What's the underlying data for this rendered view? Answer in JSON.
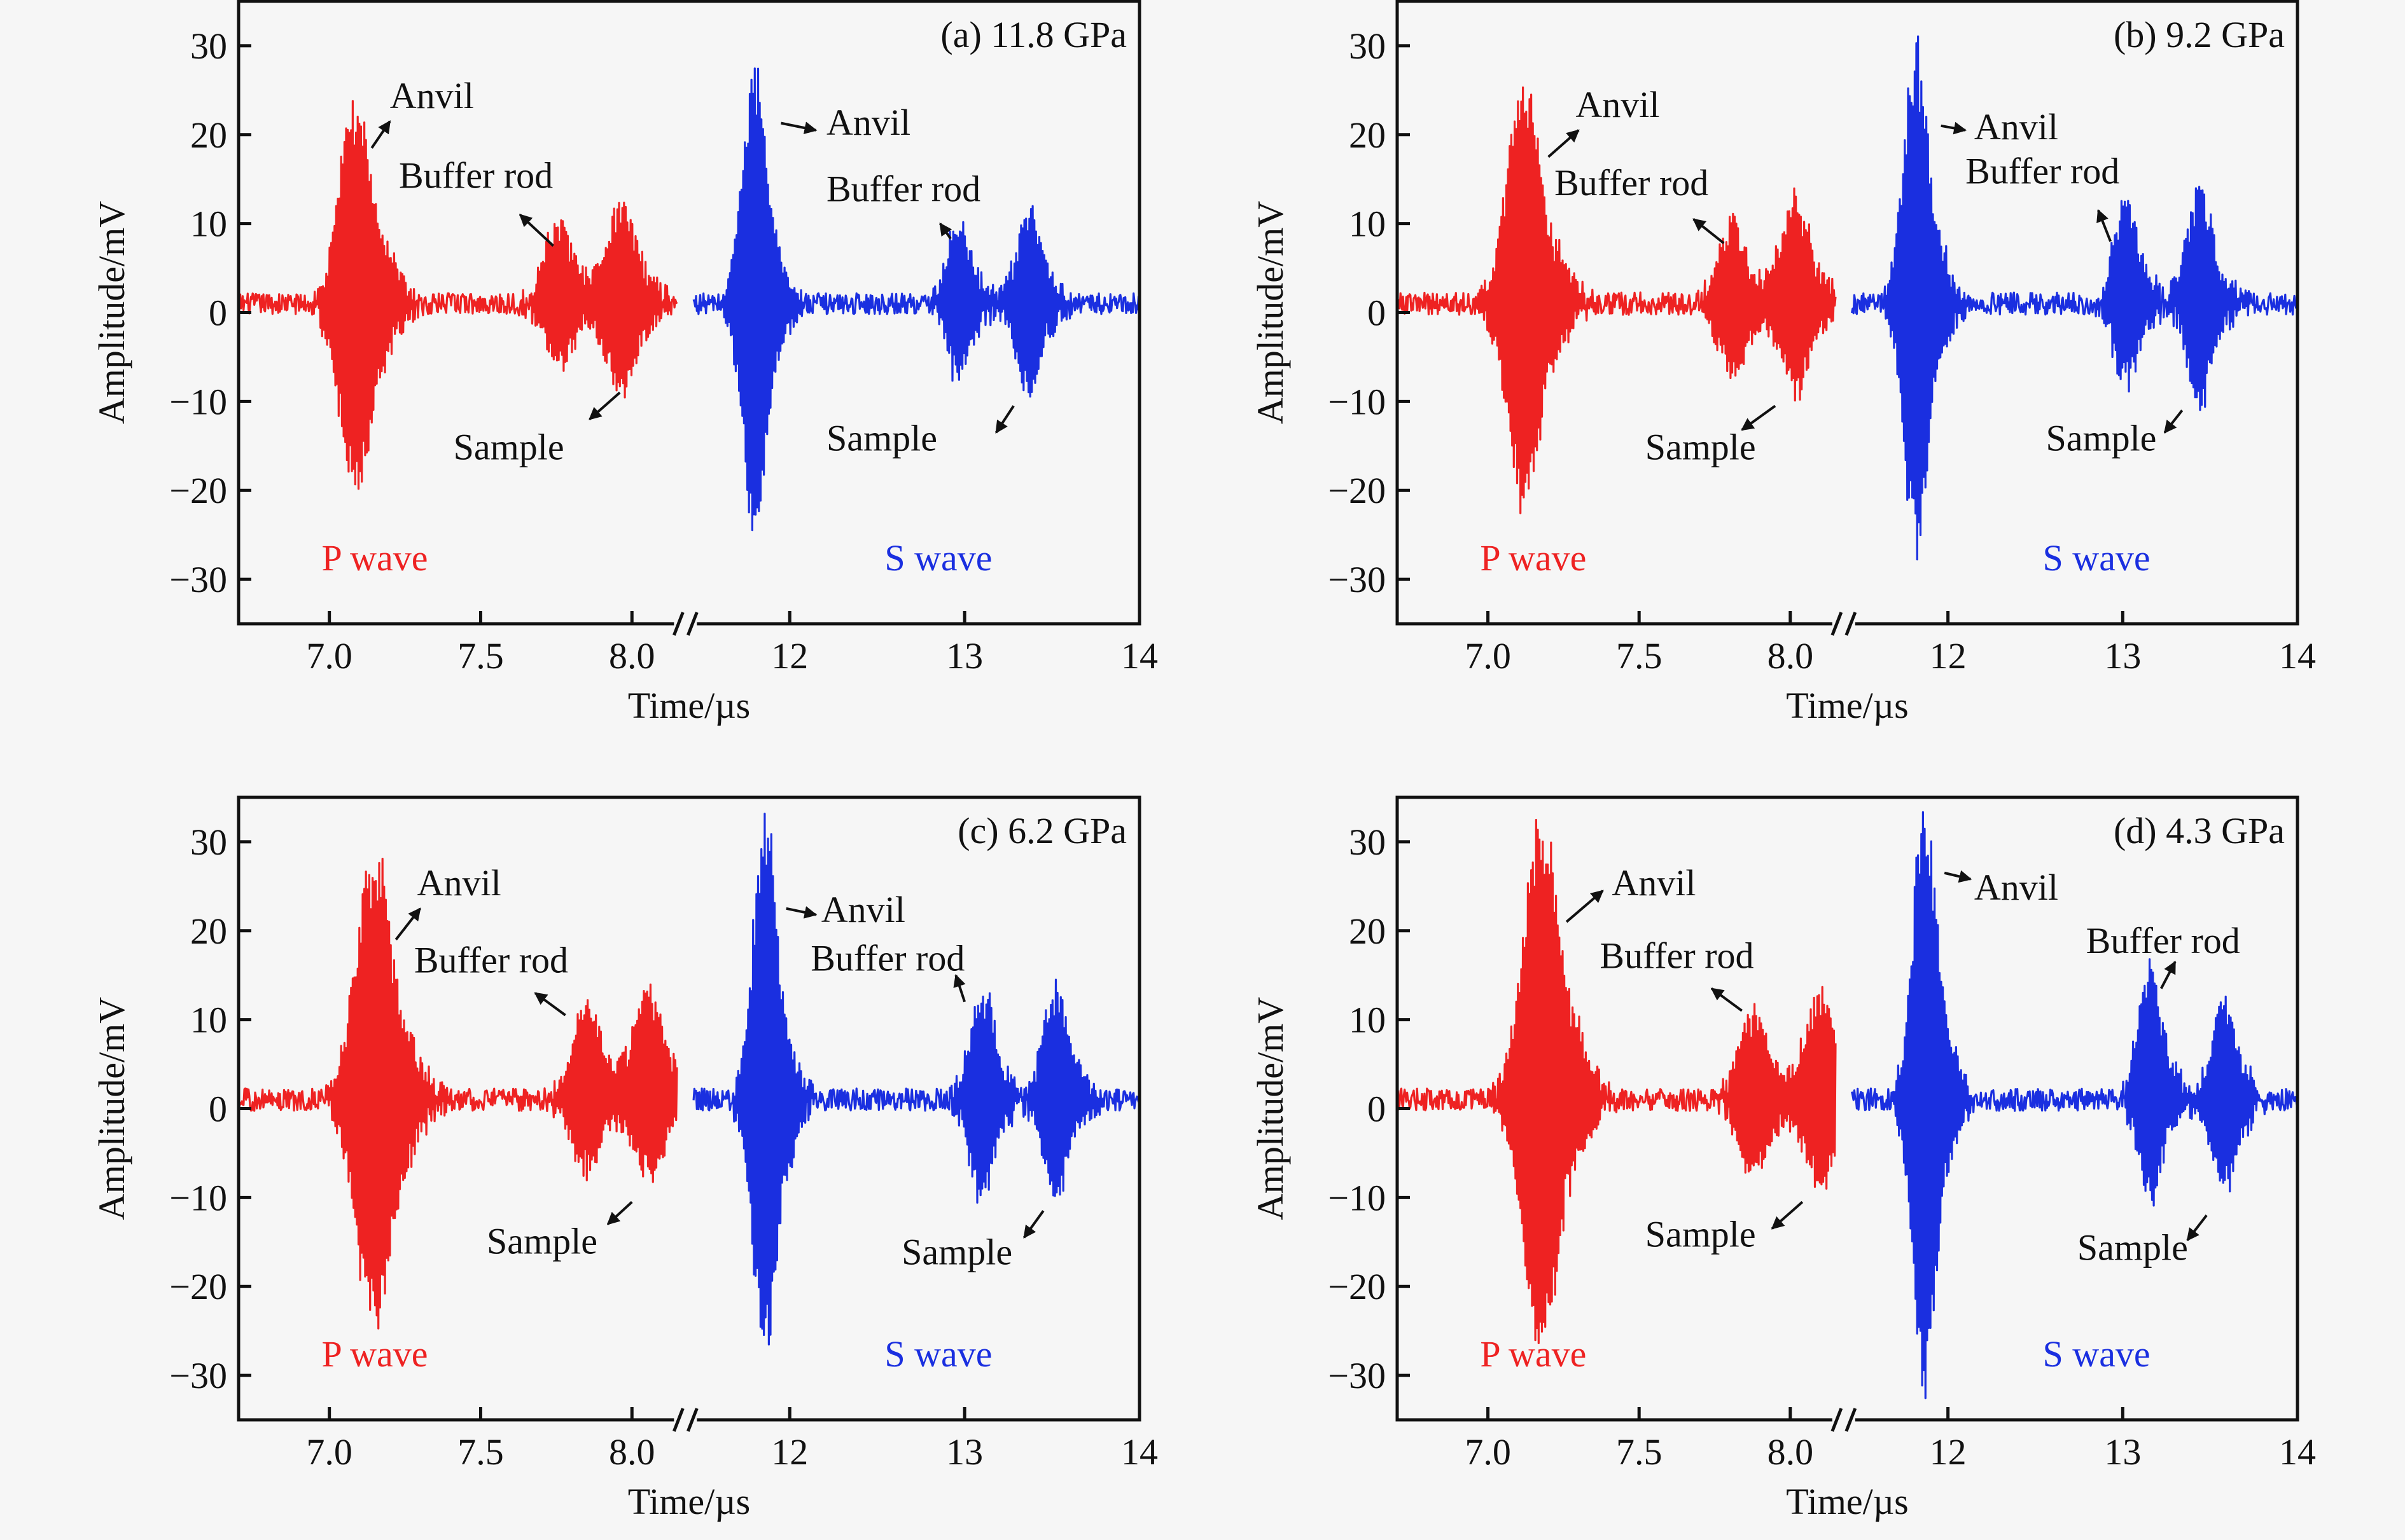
{
  "colors": {
    "background": "#f6f6f6",
    "p_wave": "#ee2222",
    "s_wave": "#1a2fe0",
    "axis": "#111111"
  },
  "chart_data": [
    {
      "type": "line",
      "panel_label": "(a) 11.8 GPa",
      "xlabel": "Time/µs",
      "ylabel": "Amplitude/mV",
      "ylim": [
        -35,
        35
      ],
      "yticks": [
        30,
        20,
        10,
        0,
        -10,
        -20,
        -30
      ],
      "ytick_labels": [
        "30",
        "20",
        "10",
        "0",
        "−10",
        "−20",
        "−30"
      ],
      "axis_break": true,
      "segments": [
        {
          "name": "P wave",
          "color_key": "p_wave",
          "xlim": [
            6.7,
            8.15
          ],
          "xticks": [
            7.0,
            7.5,
            8.0
          ],
          "xtick_labels": [
            "7.0",
            "7.5",
            "8.0"
          ]
        },
        {
          "name": "S wave",
          "color_key": "s_wave",
          "xlim": [
            11.45,
            14.0
          ],
          "xticks": [
            12,
            13,
            14
          ],
          "xtick_labels": [
            "12",
            "13",
            "14"
          ]
        }
      ],
      "baseline_offset": 1.0,
      "noise_amplitude": 1.3,
      "series": [
        {
          "name": "P wave",
          "segment": 0,
          "bursts": [
            {
              "label": "Anvil",
              "center": 7.09,
              "width": 0.055,
              "pos_peak": 24,
              "neg_peak": -22
            },
            {
              "label": "Buffer rod",
              "center": 7.76,
              "width": 0.05,
              "pos_peak": 9.5,
              "neg_peak": -7.5
            },
            {
              "label": "Sample",
              "center": 7.97,
              "width": 0.05,
              "pos_peak": 11.5,
              "neg_peak": -10.5
            }
          ]
        },
        {
          "name": "S wave",
          "segment": 1,
          "bursts": [
            {
              "label": "Anvil",
              "center": 11.8,
              "width": 0.07,
              "pos_peak": 27.5,
              "neg_peak": -26
            },
            {
              "label": "Buffer rod",
              "center": 12.97,
              "width": 0.07,
              "pos_peak": 9.5,
              "neg_peak": -9
            },
            {
              "label": "Sample",
              "center": 13.37,
              "width": 0.07,
              "pos_peak": 11.5,
              "neg_peak": -11
            }
          ]
        }
      ],
      "wave_labels": [
        {
          "text": "P wave",
          "color_key": "p_wave",
          "segment": 0,
          "x": 7.15,
          "y": -29
        },
        {
          "text": "S wave",
          "color_key": "s_wave",
          "segment": 1,
          "x": 12.85,
          "y": -29
        }
      ],
      "annotations": [
        {
          "text": "Anvil",
          "segment": 0,
          "x": 7.2,
          "y": 23,
          "arrow_from": [
            7.14,
            18.5
          ],
          "arrow_to": [
            7.2,
            21.5
          ]
        },
        {
          "text": "Buffer rod",
          "segment": 0,
          "x": 7.23,
          "y": 14,
          "arrow_from": [
            7.74,
            7.5
          ],
          "arrow_to": [
            7.63,
            11
          ]
        },
        {
          "text": "Sample",
          "segment": 0,
          "x": 7.41,
          "y": -16.5,
          "arrow_from": [
            7.96,
            -9
          ],
          "arrow_to": [
            7.86,
            -12
          ]
        },
        {
          "text": "Anvil",
          "segment": 1,
          "x": 12.21,
          "y": 20,
          "arrow_from": [
            11.95,
            21.3
          ],
          "arrow_to": [
            12.15,
            20.5
          ]
        },
        {
          "text": "Buffer rod",
          "segment": 1,
          "x": 12.21,
          "y": 12.5,
          "arrow_from": [
            12.92,
            8.3
          ],
          "arrow_to": [
            12.86,
            10
          ]
        },
        {
          "text": "Sample",
          "segment": 1,
          "x": 12.21,
          "y": -15.5,
          "arrow_from": [
            13.28,
            -10.5
          ],
          "arrow_to": [
            13.18,
            -13.5
          ]
        }
      ]
    },
    {
      "type": "line",
      "panel_label": "(b) 9.2 GPa",
      "xlabel": "Time/µs",
      "ylabel": "Amplitude/mV",
      "ylim": [
        -35,
        35
      ],
      "yticks": [
        30,
        20,
        10,
        0,
        -10,
        -20,
        -30
      ],
      "ytick_labels": [
        "30",
        "20",
        "10",
        "0",
        "−10",
        "−20",
        "−30"
      ],
      "axis_break": true,
      "segments": [
        {
          "name": "P wave",
          "color_key": "p_wave",
          "xlim": [
            6.7,
            8.15
          ],
          "xticks": [
            7.0,
            7.5,
            8.0
          ],
          "xtick_labels": [
            "7.0",
            "7.5",
            "8.0"
          ]
        },
        {
          "name": "S wave",
          "color_key": "s_wave",
          "xlim": [
            11.45,
            14.0
          ],
          "xticks": [
            12,
            13,
            14
          ],
          "xtick_labels": [
            "12",
            "13",
            "14"
          ]
        }
      ],
      "baseline_offset": 1.0,
      "noise_amplitude": 1.4,
      "series": [
        {
          "name": "P wave",
          "segment": 0,
          "bursts": [
            {
              "label": "Anvil",
              "center": 7.12,
              "width": 0.055,
              "pos_peak": 26.5,
              "neg_peak": -24.5
            },
            {
              "label": "Buffer rod",
              "center": 7.81,
              "width": 0.05,
              "pos_peak": 9.5,
              "neg_peak": -8.5
            },
            {
              "label": "Sample",
              "center": 8.02,
              "width": 0.05,
              "pos_peak": 12,
              "neg_peak": -10
            }
          ]
        },
        {
          "name": "S wave",
          "segment": 1,
          "bursts": [
            {
              "label": "Anvil",
              "center": 11.82,
              "width": 0.07,
              "pos_peak": 30.5,
              "neg_peak": -29
            },
            {
              "label": "Buffer rod",
              "center": 13.02,
              "width": 0.07,
              "pos_peak": 12.5,
              "neg_peak": -9.5
            },
            {
              "label": "Sample",
              "center": 13.44,
              "width": 0.07,
              "pos_peak": 14,
              "neg_peak": -12
            }
          ]
        }
      ],
      "wave_labels": [
        {
          "text": "P wave",
          "color_key": "p_wave",
          "segment": 0,
          "x": 7.15,
          "y": -29
        },
        {
          "text": "S wave",
          "color_key": "s_wave",
          "segment": 1,
          "x": 12.85,
          "y": -29
        }
      ],
      "annotations": [
        {
          "text": "Anvil",
          "segment": 0,
          "x": 7.29,
          "y": 22,
          "arrow_from": [
            7.2,
            17.5
          ],
          "arrow_to": [
            7.3,
            20.5
          ]
        },
        {
          "text": "Buffer rod",
          "segment": 0,
          "x": 7.22,
          "y": 13.2,
          "arrow_from": [
            7.78,
            7.8
          ],
          "arrow_to": [
            7.68,
            10.5
          ]
        },
        {
          "text": "Sample",
          "segment": 0,
          "x": 7.52,
          "y": -16.5,
          "arrow_from": [
            7.95,
            -10.5
          ],
          "arrow_to": [
            7.84,
            -13.2
          ]
        },
        {
          "text": "Anvil",
          "segment": 1,
          "x": 12.15,
          "y": 19.5,
          "arrow_from": [
            11.96,
            21
          ],
          "arrow_to": [
            12.1,
            20.5
          ]
        },
        {
          "text": "Buffer rod",
          "segment": 1,
          "x": 12.1,
          "y": 14.5,
          "arrow_from": [
            12.93,
            8
          ],
          "arrow_to": [
            12.86,
            11.5
          ]
        },
        {
          "text": "Sample",
          "segment": 1,
          "x": 12.56,
          "y": -15.5,
          "arrow_from": [
            13.34,
            -11
          ],
          "arrow_to": [
            13.24,
            -13.5
          ]
        }
      ]
    },
    {
      "type": "line",
      "panel_label": "(c) 6.2 GPa",
      "xlabel": "Time/µs",
      "ylabel": "Amplitude/mV",
      "ylim": [
        -35,
        35
      ],
      "yticks": [
        30,
        20,
        10,
        0,
        -10,
        -20,
        -30
      ],
      "ytick_labels": [
        "30",
        "20",
        "10",
        "0",
        "−10",
        "−20",
        "−30"
      ],
      "axis_break": true,
      "segments": [
        {
          "name": "P wave",
          "color_key": "p_wave",
          "xlim": [
            6.7,
            8.15
          ],
          "xticks": [
            7.0,
            7.5,
            8.0
          ],
          "xtick_labels": [
            "7.0",
            "7.5",
            "8.0"
          ]
        },
        {
          "name": "S wave",
          "color_key": "s_wave",
          "xlim": [
            11.45,
            14.0
          ],
          "xticks": [
            12,
            13,
            14
          ],
          "xtick_labels": [
            "12",
            "13",
            "14"
          ]
        }
      ],
      "baseline_offset": 1.0,
      "noise_amplitude": 1.4,
      "series": [
        {
          "name": "P wave",
          "segment": 0,
          "bursts": [
            {
              "label": "Anvil",
              "center": 7.15,
              "width": 0.06,
              "pos_peak": 29,
              "neg_peak": -27
            },
            {
              "label": "Buffer rod",
              "center": 7.85,
              "width": 0.05,
              "pos_peak": 11,
              "neg_peak": -8.5
            },
            {
              "label": "Sample",
              "center": 8.06,
              "width": 0.05,
              "pos_peak": 13.5,
              "neg_peak": -9.5
            }
          ]
        },
        {
          "name": "S wave",
          "segment": 1,
          "bursts": [
            {
              "label": "Anvil",
              "center": 11.86,
              "width": 0.07,
              "pos_peak": 33,
              "neg_peak": -31
            },
            {
              "label": "Buffer rod",
              "center": 13.1,
              "width": 0.07,
              "pos_peak": 13.5,
              "neg_peak": -11.5
            },
            {
              "label": "Sample",
              "center": 13.52,
              "width": 0.07,
              "pos_peak": 14,
              "neg_peak": -11.5
            }
          ]
        }
      ],
      "wave_labels": [
        {
          "text": "P wave",
          "color_key": "p_wave",
          "segment": 0,
          "x": 7.15,
          "y": -29
        },
        {
          "text": "S wave",
          "color_key": "s_wave",
          "segment": 1,
          "x": 12.85,
          "y": -29
        }
      ],
      "annotations": [
        {
          "text": "Anvil",
          "segment": 0,
          "x": 7.29,
          "y": 24,
          "arrow_from": [
            7.22,
            19
          ],
          "arrow_to": [
            7.3,
            22.5
          ]
        },
        {
          "text": "Buffer rod",
          "segment": 0,
          "x": 7.28,
          "y": 15.3,
          "arrow_from": [
            7.78,
            10.5
          ],
          "arrow_to": [
            7.68,
            13
          ]
        },
        {
          "text": "Sample",
          "segment": 0,
          "x": 7.52,
          "y": -16.3,
          "arrow_from": [
            8.0,
            -10.5
          ],
          "arrow_to": [
            7.92,
            -13
          ]
        },
        {
          "text": "Anvil",
          "segment": 1,
          "x": 12.18,
          "y": 21,
          "arrow_from": [
            11.98,
            22.5
          ],
          "arrow_to": [
            12.15,
            21.8
          ]
        },
        {
          "text": "Buffer rod",
          "segment": 1,
          "x": 12.12,
          "y": 15.5,
          "arrow_from": [
            13.0,
            12
          ],
          "arrow_to": [
            12.95,
            15
          ]
        },
        {
          "text": "Sample",
          "segment": 1,
          "x": 12.64,
          "y": -17.5,
          "arrow_from": [
            13.45,
            -11.5
          ],
          "arrow_to": [
            13.34,
            -14.5
          ]
        }
      ]
    },
    {
      "type": "line",
      "panel_label": "(d) 4.3 GPa",
      "xlabel": "Time/µs",
      "ylabel": "Amplitude/mV",
      "ylim": [
        -35,
        35
      ],
      "yticks": [
        30,
        20,
        10,
        0,
        -10,
        -20,
        -30
      ],
      "ytick_labels": [
        "30",
        "20",
        "10",
        "0",
        "−10",
        "−20",
        "−30"
      ],
      "axis_break": true,
      "segments": [
        {
          "name": "P wave",
          "color_key": "p_wave",
          "xlim": [
            6.7,
            8.15
          ],
          "xticks": [
            7.0,
            7.5,
            8.0
          ],
          "xtick_labels": [
            "7.0",
            "7.5",
            "8.0"
          ]
        },
        {
          "name": "S wave",
          "color_key": "s_wave",
          "xlim": [
            11.45,
            14.0
          ],
          "xticks": [
            12,
            13,
            14
          ],
          "xtick_labels": [
            "12",
            "13",
            "14"
          ]
        }
      ],
      "baseline_offset": 1.0,
      "noise_amplitude": 1.4,
      "series": [
        {
          "name": "P wave",
          "segment": 0,
          "bursts": [
            {
              "label": "Anvil",
              "center": 7.18,
              "width": 0.06,
              "pos_peak": 33,
              "neg_peak": -29
            },
            {
              "label": "Buffer rod",
              "center": 7.88,
              "width": 0.05,
              "pos_peak": 11,
              "neg_peak": -9
            },
            {
              "label": "Sample",
              "center": 8.1,
              "width": 0.05,
              "pos_peak": 12.5,
              "neg_peak": -10
            }
          ]
        },
        {
          "name": "S wave",
          "segment": 1,
          "bursts": [
            {
              "label": "Anvil",
              "center": 11.87,
              "width": 0.07,
              "pos_peak": 34.5,
              "neg_peak": -32.5
            },
            {
              "label": "Buffer rod",
              "center": 13.16,
              "width": 0.07,
              "pos_peak": 15,
              "neg_peak": -12
            },
            {
              "label": "Sample",
              "center": 13.58,
              "width": 0.07,
              "pos_peak": 12.5,
              "neg_peak": -11
            }
          ]
        }
      ],
      "wave_labels": [
        {
          "text": "P wave",
          "color_key": "p_wave",
          "segment": 0,
          "x": 7.15,
          "y": -29
        },
        {
          "text": "S wave",
          "color_key": "s_wave",
          "segment": 1,
          "x": 12.85,
          "y": -29
        }
      ],
      "annotations": [
        {
          "text": "Anvil",
          "segment": 0,
          "x": 7.41,
          "y": 24,
          "arrow_from": [
            7.26,
            21
          ],
          "arrow_to": [
            7.38,
            24.5
          ]
        },
        {
          "text": "Buffer rod",
          "segment": 0,
          "x": 7.37,
          "y": 15.8,
          "arrow_from": [
            7.84,
            11
          ],
          "arrow_to": [
            7.74,
            13.5
          ]
        },
        {
          "text": "Sample",
          "segment": 0,
          "x": 7.52,
          "y": -15.5,
          "arrow_from": [
            8.04,
            -10.5
          ],
          "arrow_to": [
            7.94,
            -13.5
          ]
        },
        {
          "text": "Anvil",
          "segment": 1,
          "x": 12.15,
          "y": 23.5,
          "arrow_from": [
            11.98,
            26.5
          ],
          "arrow_to": [
            12.13,
            25.8
          ]
        },
        {
          "text": "Buffer rod",
          "segment": 1,
          "x": 12.79,
          "y": 17.5,
          "arrow_from": [
            13.22,
            13.5
          ],
          "arrow_to": [
            13.3,
            16.5
          ]
        },
        {
          "text": "Sample",
          "segment": 1,
          "x": 12.74,
          "y": -17,
          "arrow_from": [
            13.48,
            -12
          ],
          "arrow_to": [
            13.37,
            -14.8
          ]
        }
      ]
    }
  ]
}
